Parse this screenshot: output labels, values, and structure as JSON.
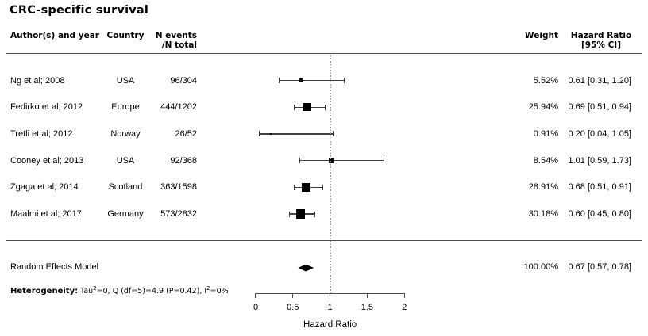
{
  "title": "CRC-specific survival",
  "header": {
    "author": "Author(s) and year",
    "country": "Country",
    "events_line1": "N events",
    "events_line2": "/N total",
    "weight": "Weight",
    "hr_line1": "Hazard Ratio",
    "hr_line2": "[95% CI]"
  },
  "studies": [
    {
      "author": "Ng et al; 2008",
      "country": "USA",
      "events": "96/304",
      "weight": "5.52%",
      "hr_ci": "0.61 [0.31, 1.20]",
      "hr": 0.61,
      "ci_low": 0.31,
      "ci_high": 1.2,
      "weight_pct": 5.52
    },
    {
      "author": "Fedirko et al; 2012",
      "country": "Europe",
      "events": "444/1202",
      "weight": "25.94%",
      "hr_ci": "0.69 [0.51, 0.94]",
      "hr": 0.69,
      "ci_low": 0.51,
      "ci_high": 0.94,
      "weight_pct": 25.94
    },
    {
      "author": "Tretli et al; 2012",
      "country": "Norway",
      "events": "26/52",
      "weight": "0.91%",
      "hr_ci": "0.20 [0.04, 1.05]",
      "hr": 0.2,
      "ci_low": 0.04,
      "ci_high": 1.05,
      "weight_pct": 0.91
    },
    {
      "author": "Cooney et al; 2013",
      "country": "USA",
      "events": "92/368",
      "weight": "8.54%",
      "hr_ci": "1.01 [0.59, 1.73]",
      "hr": 1.01,
      "ci_low": 0.59,
      "ci_high": 1.73,
      "weight_pct": 8.54
    },
    {
      "author": "Zgaga et al; 2014",
      "country": "Scotland",
      "events": "363/1598",
      "weight": "28.91%",
      "hr_ci": "0.68 [0.51, 0.91]",
      "hr": 0.68,
      "ci_low": 0.51,
      "ci_high": 0.91,
      "weight_pct": 28.91
    },
    {
      "author": "Maalmi et al; 2017",
      "country": "Germany",
      "events": "573/2832",
      "weight": "30.18%",
      "hr_ci": "0.60 [0.45, 0.80]",
      "hr": 0.6,
      "ci_low": 0.45,
      "ci_high": 0.8,
      "weight_pct": 30.18
    }
  ],
  "summary": {
    "label": "Random Effects Model",
    "weight": "100.00%",
    "hr_ci": "0.67 [0.57, 0.78]",
    "hr": 0.67,
    "ci_low": 0.57,
    "ci_high": 0.78
  },
  "heterogeneity": {
    "label": "Heterogeneity:",
    "segments": [
      {
        "t": " Tau"
      },
      {
        "sup": "2"
      },
      {
        "t": "=0, Q (df=5)=4.9 (P=0.42), I"
      },
      {
        "sup": "2"
      },
      {
        "t": "=0%"
      }
    ]
  },
  "axis": {
    "label": "Hazard Ratio",
    "tick_labels": [
      "0",
      "0.5",
      "1",
      "1.5",
      "2"
    ],
    "tick_values": [
      0,
      0.5,
      1,
      1.5,
      2
    ],
    "range": [
      0,
      2
    ],
    "reference_value": 1
  },
  "colors": {
    "text": "#000000",
    "rule": "#4d4d4d",
    "ci_line": "#404040",
    "marker": "#000000",
    "reference_dots": "#999999"
  },
  "chart_data": {
    "type": "scatter",
    "subtype": "forest-plot",
    "title": "CRC-specific survival",
    "xlabel": "Hazard Ratio",
    "xlim": [
      0,
      2
    ],
    "x_ticks": [
      0,
      0.5,
      1,
      1.5,
      2
    ],
    "reference_line_x": 1,
    "legend_position": "none",
    "grid": false,
    "series": [
      {
        "name": "Ng et al; 2008",
        "x": 0.61,
        "ci": [
          0.31,
          1.2
        ],
        "weight_pct": 5.52,
        "n_events": 96,
        "n_total": 304,
        "country": "USA"
      },
      {
        "name": "Fedirko et al; 2012",
        "x": 0.69,
        "ci": [
          0.51,
          0.94
        ],
        "weight_pct": 25.94,
        "n_events": 444,
        "n_total": 1202,
        "country": "Europe"
      },
      {
        "name": "Tretli et al; 2012",
        "x": 0.2,
        "ci": [
          0.04,
          1.05
        ],
        "weight_pct": 0.91,
        "n_events": 26,
        "n_total": 52,
        "country": "Norway"
      },
      {
        "name": "Cooney et al; 2013",
        "x": 1.01,
        "ci": [
          0.59,
          1.73
        ],
        "weight_pct": 8.54,
        "n_events": 92,
        "n_total": 368,
        "country": "USA"
      },
      {
        "name": "Zgaga et al; 2014",
        "x": 0.68,
        "ci": [
          0.51,
          0.91
        ],
        "weight_pct": 28.91,
        "n_events": 363,
        "n_total": 1598,
        "country": "Scotland"
      },
      {
        "name": "Maalmi et al; 2017",
        "x": 0.6,
        "ci": [
          0.45,
          0.8
        ],
        "weight_pct": 30.18,
        "n_events": 573,
        "n_total": 2832,
        "country": "Germany"
      }
    ],
    "summary": {
      "name": "Random Effects Model",
      "x": 0.67,
      "ci": [
        0.57,
        0.78
      ],
      "weight_pct": 100.0
    },
    "heterogeneity": {
      "tau2": 0,
      "Q": 4.9,
      "df": 5,
      "P": 0.42,
      "I2_pct": 0
    }
  }
}
